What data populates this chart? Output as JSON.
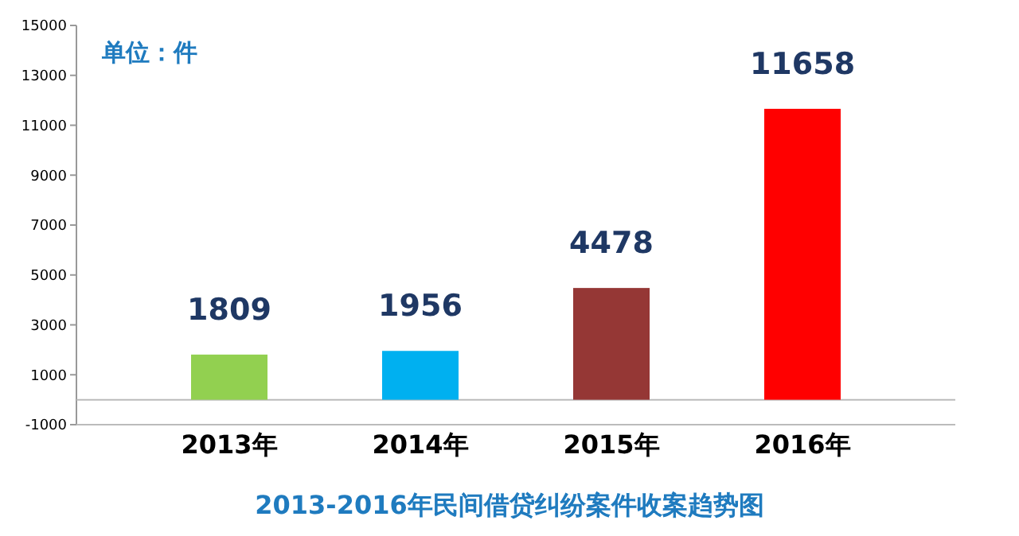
{
  "chart_data": {
    "type": "bar",
    "title": "2013-2016年民间借贷纠纷案件收案趋势图",
    "annotations": [
      "单位：件"
    ],
    "categories": [
      "2013年",
      "2014年",
      "2015年",
      "2016年"
    ],
    "values": [
      1809,
      1956,
      4478,
      11658
    ],
    "colors": [
      "#92d050",
      "#00b0f0",
      "#953735",
      "#ff0000"
    ],
    "ylim": [
      -1000,
      15000
    ],
    "yticks": [
      -1000,
      1000,
      3000,
      5000,
      7000,
      9000,
      11000,
      13000,
      15000
    ],
    "data_labels": true,
    "grid": false
  }
}
